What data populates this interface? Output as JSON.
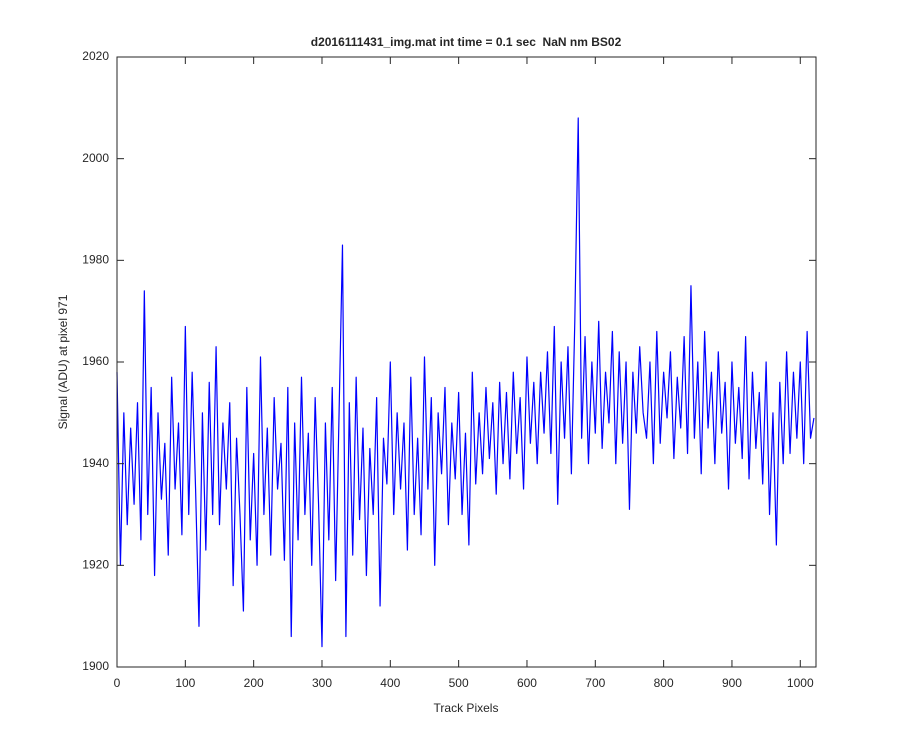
{
  "chart_data": {
    "type": "line",
    "title": "d2016111431_img.mat int time = 0.1 sec  NaN nm BS02",
    "xlabel": "Track Pixels",
    "ylabel": "Signal (ADU) at pixel 971",
    "x": [
      0,
      5,
      10,
      15,
      20,
      25,
      30,
      35,
      40,
      45,
      50,
      55,
      60,
      65,
      70,
      75,
      80,
      85,
      90,
      95,
      100,
      105,
      110,
      115,
      120,
      125,
      130,
      135,
      140,
      145,
      150,
      155,
      160,
      165,
      170,
      175,
      180,
      185,
      190,
      195,
      200,
      205,
      210,
      215,
      220,
      225,
      230,
      235,
      240,
      245,
      250,
      255,
      260,
      265,
      270,
      275,
      280,
      285,
      290,
      295,
      300,
      305,
      310,
      315,
      320,
      325,
      330,
      335,
      340,
      345,
      350,
      355,
      360,
      365,
      370,
      375,
      380,
      385,
      390,
      395,
      400,
      405,
      410,
      415,
      420,
      425,
      430,
      435,
      440,
      445,
      450,
      455,
      460,
      465,
      470,
      475,
      480,
      485,
      490,
      495,
      500,
      505,
      510,
      515,
      520,
      525,
      530,
      535,
      540,
      545,
      550,
      555,
      560,
      565,
      570,
      575,
      580,
      585,
      590,
      595,
      600,
      605,
      610,
      615,
      620,
      625,
      630,
      635,
      640,
      645,
      650,
      655,
      660,
      665,
      670,
      675,
      680,
      685,
      690,
      695,
      700,
      705,
      710,
      715,
      720,
      725,
      730,
      735,
      740,
      745,
      750,
      755,
      760,
      765,
      770,
      775,
      780,
      785,
      790,
      795,
      800,
      805,
      810,
      815,
      820,
      825,
      830,
      835,
      840,
      845,
      850,
      855,
      860,
      865,
      870,
      875,
      880,
      885,
      890,
      895,
      900,
      905,
      910,
      915,
      920,
      925,
      930,
      935,
      940,
      945,
      950,
      955,
      960,
      965,
      970,
      975,
      980,
      985,
      990,
      995,
      1000,
      1005,
      1010,
      1015,
      1020
    ],
    "series": [
      {
        "name": "Signal",
        "color": "#0000ff",
        "values": [
          1958,
          1920,
          1950,
          1928,
          1947,
          1932,
          1952,
          1925,
          1974,
          1930,
          1955,
          1918,
          1950,
          1933,
          1944,
          1922,
          1957,
          1935,
          1948,
          1926,
          1967,
          1930,
          1958,
          1935,
          1908,
          1950,
          1923,
          1956,
          1930,
          1963,
          1928,
          1948,
          1935,
          1952,
          1916,
          1945,
          1930,
          1911,
          1955,
          1925,
          1942,
          1920,
          1961,
          1930,
          1947,
          1922,
          1953,
          1935,
          1944,
          1921,
          1955,
          1906,
          1948,
          1925,
          1957,
          1930,
          1946,
          1920,
          1953,
          1932,
          1904,
          1948,
          1925,
          1955,
          1917,
          1950,
          1983,
          1906,
          1952,
          1922,
          1957,
          1929,
          1947,
          1918,
          1943,
          1930,
          1953,
          1912,
          1945,
          1936,
          1960,
          1930,
          1950,
          1935,
          1948,
          1923,
          1957,
          1930,
          1945,
          1926,
          1961,
          1935,
          1953,
          1920,
          1950,
          1938,
          1955,
          1928,
          1948,
          1937,
          1954,
          1930,
          1946,
          1924,
          1958,
          1936,
          1950,
          1938,
          1955,
          1941,
          1952,
          1934,
          1956,
          1940,
          1954,
          1937,
          1958,
          1942,
          1953,
          1935,
          1961,
          1944,
          1956,
          1940,
          1958,
          1946,
          1962,
          1942,
          1967,
          1932,
          1960,
          1945,
          1963,
          1938,
          1968,
          2008,
          1945,
          1965,
          1940,
          1960,
          1946,
          1968,
          1943,
          1958,
          1948,
          1966,
          1940,
          1962,
          1944,
          1960,
          1931,
          1958,
          1946,
          1963,
          1950,
          1945,
          1960,
          1940,
          1966,
          1944,
          1958,
          1949,
          1962,
          1941,
          1957,
          1947,
          1965,
          1942,
          1975,
          1945,
          1960,
          1938,
          1966,
          1947,
          1958,
          1940,
          1962,
          1946,
          1956,
          1935,
          1960,
          1944,
          1955,
          1941,
          1965,
          1937,
          1958,
          1943,
          1954,
          1936,
          1960,
          1930,
          1950,
          1924,
          1956,
          1940,
          1962,
          1942,
          1958,
          1945,
          1960,
          1940,
          1966,
          1945,
          1949
        ]
      }
    ],
    "xlim": [
      0,
      1023
    ],
    "xticks": [
      0,
      100,
      200,
      300,
      400,
      500,
      600,
      700,
      800,
      900,
      1000
    ],
    "ylim": [
      1900,
      2020
    ],
    "yticks": [
      1900,
      1920,
      1940,
      1960,
      1980,
      2000,
      2020
    ]
  }
}
